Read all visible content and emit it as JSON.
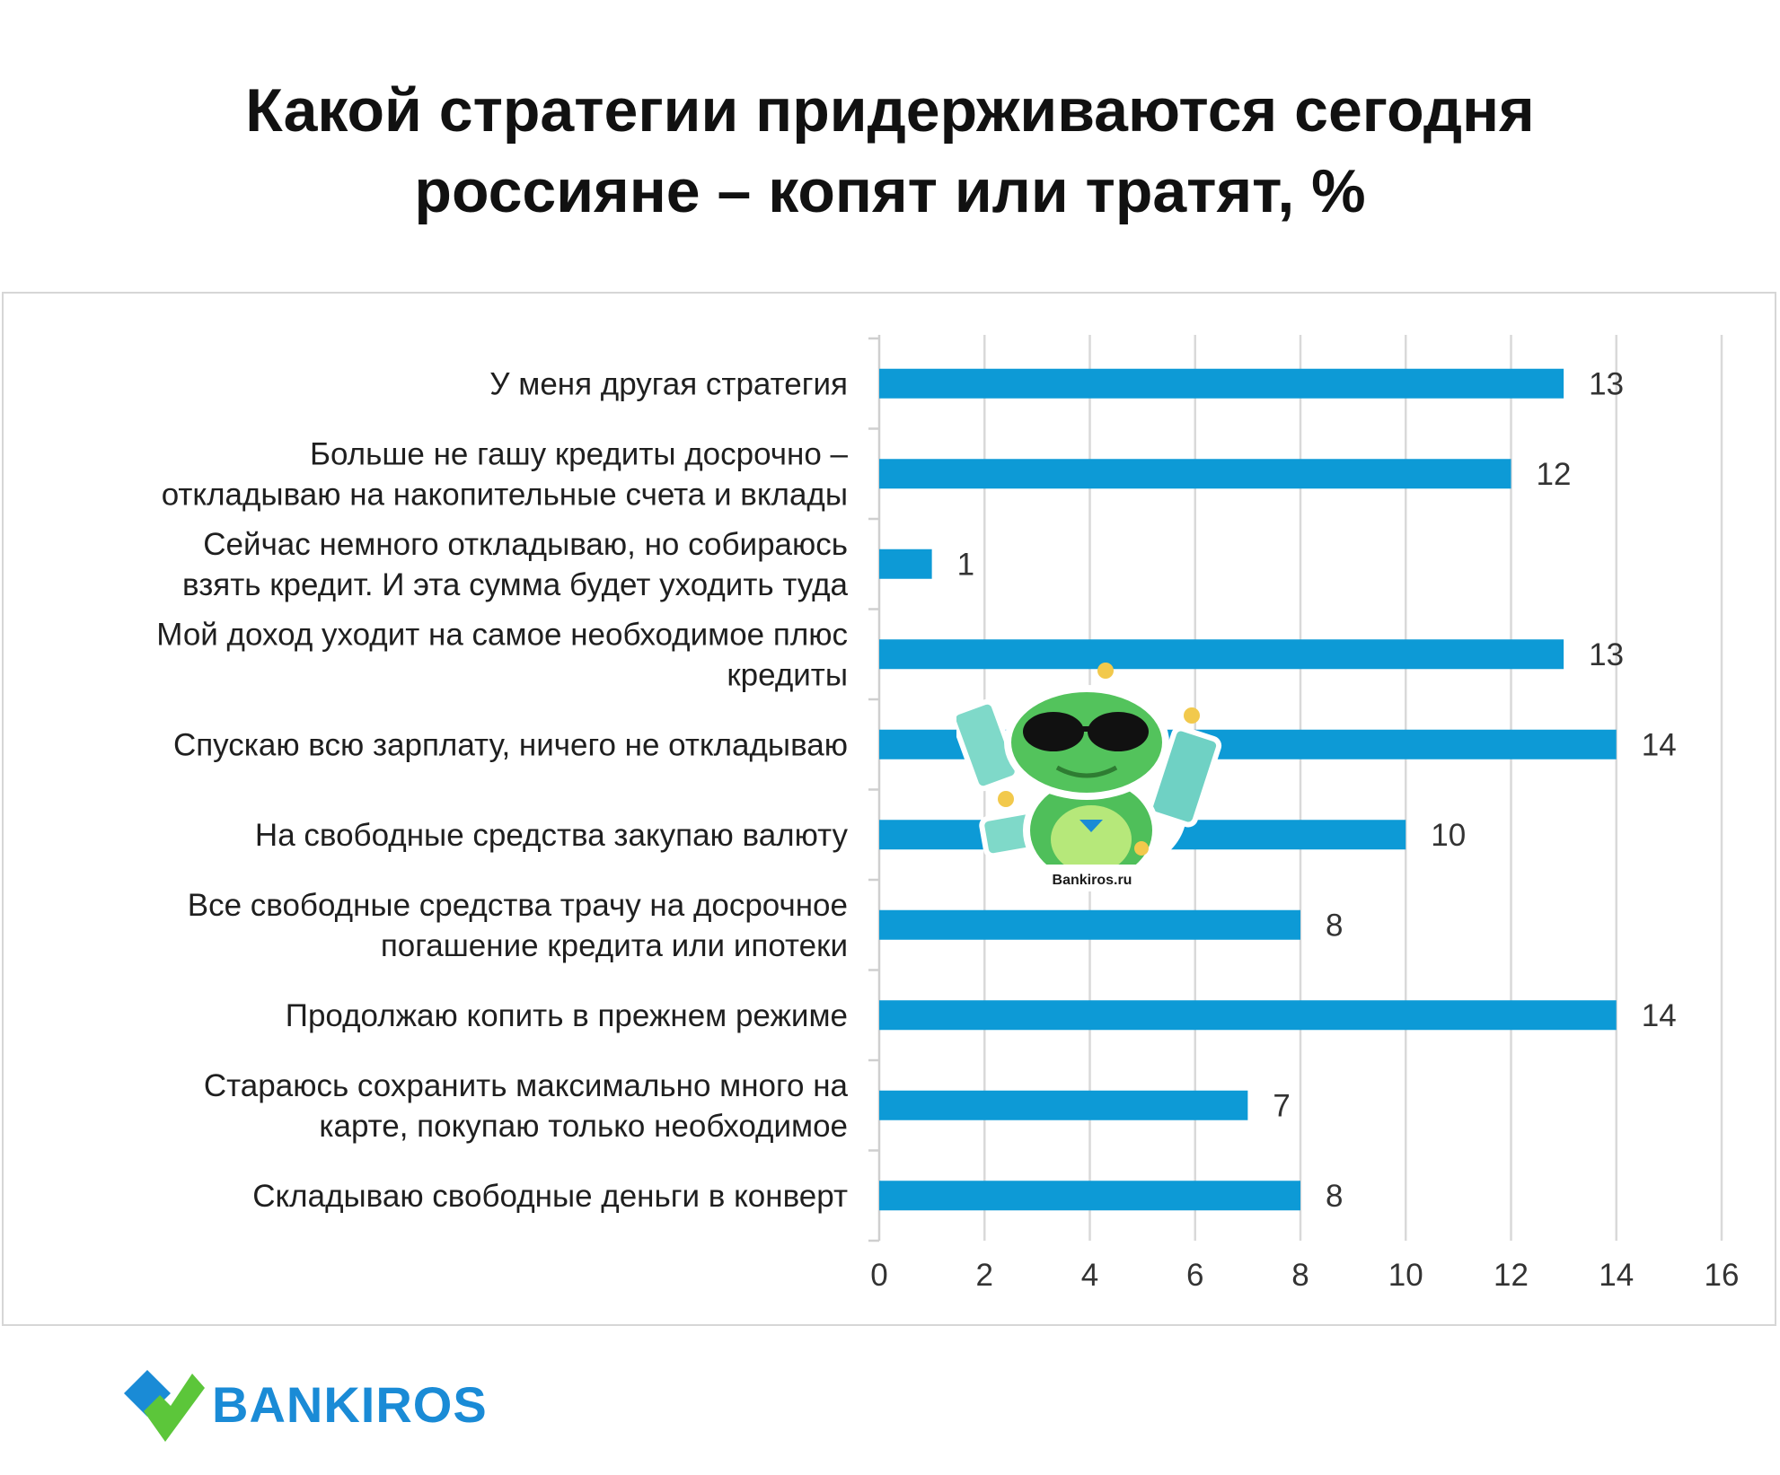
{
  "title": {
    "line1": "Какой стратегии придерживаются сегодня",
    "line2": "россияне – копят или тратят, %"
  },
  "colors": {
    "bar": "#0d9ad6",
    "grid": "#d9d9d9",
    "brand_blue": "#1a8bd6",
    "brand_green": "#5cc63a"
  },
  "brand": {
    "name": "BANKIROS",
    "mascot_caption": "Bankiros.ru",
    "mascot_icon": "lizard-mascot-icon",
    "logo_icon": "checkmark-logo-icon"
  },
  "chart_data": {
    "type": "bar",
    "orientation": "horizontal",
    "categories": [
      [
        "У меня другая стратегия"
      ],
      [
        "Больше не гашу кредиты досрочно –",
        "откладываю на накопительные счета и вклады"
      ],
      [
        "Сейчас немного откладываю, но собираюсь",
        "взять кредит. И эта сумма будет уходить туда"
      ],
      [
        "Мой доход уходит на самое необходимое плюс",
        "кредиты"
      ],
      [
        "Спускаю всю зарплату, ничего не откладываю"
      ],
      [
        "На свободные средства закупаю валюту"
      ],
      [
        "Все свободные средства трачу на досрочное",
        "погашение кредита или ипотеки"
      ],
      [
        "Продолжаю копить в прежнем режиме"
      ],
      [
        "Стараюсь сохранить максимально много на",
        "карте, покупаю только необходимое"
      ],
      [
        "Складываю свободные деньги в конверт"
      ]
    ],
    "values": [
      13,
      12,
      1,
      13,
      14,
      10,
      8,
      14,
      7,
      8
    ],
    "xlim": [
      0,
      16
    ],
    "xticks": [
      0,
      2,
      4,
      6,
      8,
      10,
      12,
      14,
      16
    ],
    "grid": "vertical",
    "legend": "none"
  }
}
